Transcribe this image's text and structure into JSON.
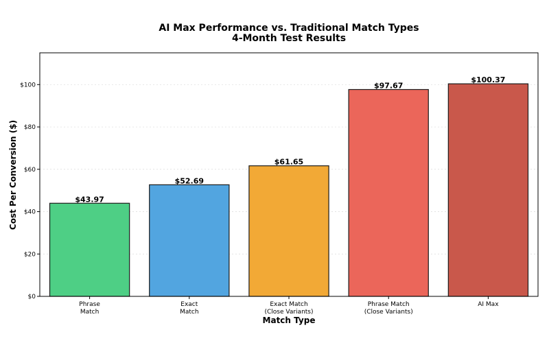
{
  "chart_data": {
    "type": "bar",
    "title": [
      "AI Max Performance vs. Traditional Match Types",
      "4-Month Test Results"
    ],
    "xlabel": "Match Type",
    "ylabel": "Cost Per Conversion ($)",
    "categories": [
      [
        "Phrase",
        "Match"
      ],
      [
        "Exact",
        "Match"
      ],
      [
        "Exact Match",
        "(Close Variants)"
      ],
      [
        "Phrase Match",
        "(Close Variants)"
      ],
      [
        "AI Max"
      ]
    ],
    "values": [
      43.97,
      52.69,
      61.65,
      97.67,
      100.37
    ],
    "value_labels": [
      "$43.97",
      "$52.69",
      "$61.65",
      "$97.67",
      "$100.37"
    ],
    "colors": [
      "#4ecf85",
      "#52a5e0",
      "#f2a936",
      "#eb665a",
      "#c9584b"
    ],
    "ylim": [
      0,
      115
    ],
    "yticks": [
      0,
      20,
      40,
      60,
      80,
      100
    ],
    "ytick_labels": [
      "$0",
      "$20",
      "$40",
      "$60",
      "$80",
      "$100"
    ],
    "grid": true
  }
}
